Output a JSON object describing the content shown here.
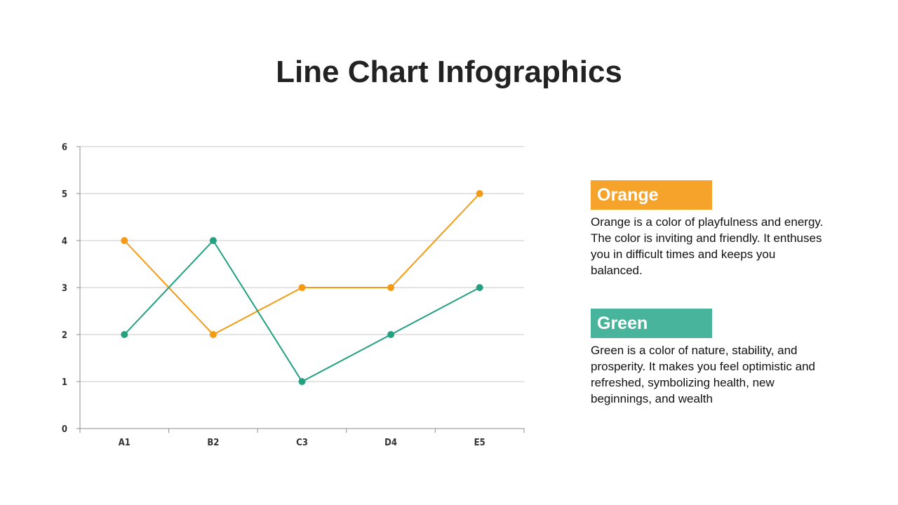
{
  "title": "Line Chart Infographics",
  "colors": {
    "orange": "#F5A32A",
    "green": "#48B49B",
    "orange_line": "#F59A13",
    "green_line": "#22A07F"
  },
  "legend": [
    {
      "key": "orange",
      "label": "Orange",
      "description": "Orange is a color of playfulness and energy. The color is inviting and friendly. It enthuses you in difficult times and keeps you balanced."
    },
    {
      "key": "green",
      "label": "Green",
      "description": "Green is a color of nature, stability, and prosperity. It makes you feel optimistic and refreshed, symbolizing health, new beginnings, and wealth"
    }
  ],
  "chart_data": {
    "type": "line",
    "categories": [
      "A1",
      "B2",
      "C3",
      "D4",
      "E5"
    ],
    "series": [
      {
        "color": "#F59A13",
        "values": [
          4,
          2,
          3,
          3,
          5
        ]
      },
      {
        "color": "#22A07F",
        "values": [
          2,
          4,
          1,
          2,
          3
        ]
      }
    ],
    "ylim": [
      0,
      6
    ],
    "yticks": [
      0,
      1,
      2,
      3,
      4,
      5,
      6
    ],
    "grid": true
  }
}
